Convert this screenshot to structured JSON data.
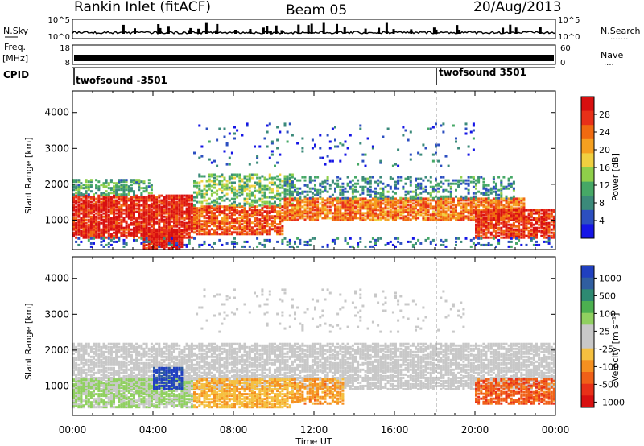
{
  "header": {
    "title": "Rankin Inlet (fitACF)",
    "beam": "Beam 05",
    "date": "20/Aug/2013"
  },
  "noise_panel": {
    "left_label": "N.Sky",
    "right_label": "N.Search",
    "right_dots": "·······",
    "ticks_left": [
      "10^5",
      "10^0"
    ],
    "ticks_right": [
      "10^5",
      "10^0"
    ]
  },
  "freq_panel": {
    "left_label_1": "Freq.",
    "left_label_2": "[MHz]",
    "right_label": "Nave",
    "right_dots": "····",
    "ticks_left": [
      "18",
      "8"
    ],
    "ticks_right": [
      "60",
      "0"
    ]
  },
  "cpid_panel": {
    "label": "CPID",
    "segments": [
      {
        "start_hour": 0,
        "text": "twofsound -3501"
      },
      {
        "start_hour": 18,
        "text": "twofsound 3501"
      }
    ]
  },
  "axis": {
    "xlabel": "Time UT",
    "xticks": [
      "00:00",
      "04:00",
      "08:00",
      "12:00",
      "16:00",
      "20:00",
      "00:00"
    ],
    "ylabel": "Slant Range [km]",
    "yticks": [
      "1000",
      "2000",
      "3000",
      "4000"
    ]
  },
  "colorbars": {
    "power": {
      "label": "Power [dB]",
      "ticks": [
        "4",
        "8",
        "12",
        "16",
        "20",
        "24",
        "28"
      ],
      "colors": [
        "#1515e6",
        "#2c4fc0",
        "#3b8a7a",
        "#46a866",
        "#8fcf4a",
        "#f0d040",
        "#f5a020",
        "#f06a10",
        "#e83018",
        "#d81010"
      ]
    },
    "velocity": {
      "label": "Velocity [m s⁻¹]",
      "ticks": [
        "1000",
        "500",
        "100",
        "25",
        "-25",
        "-100",
        "-500",
        "-1000"
      ],
      "colors": [
        "#2040c0",
        "#305ea0",
        "#2e8a72",
        "#4cb050",
        "#90d060",
        "#c8c8c8",
        "#c8c8c8",
        "#f5c040",
        "#f59020",
        "#f06018",
        "#e83018",
        "#d81010"
      ]
    }
  },
  "chart_data": [
    {
      "type": "heatmap",
      "title": "Power",
      "xlabel": "Time UT",
      "ylabel": "Slant Range [km]",
      "xlim_hours": [
        0,
        24
      ],
      "ylim_km": [
        180,
        4600
      ],
      "colorbar_label": "Power [dB]",
      "colorbar_range": [
        0,
        30
      ],
      "bands": [
        {
          "t0": 0.0,
          "t1": 6.0,
          "r0": 500,
          "r1": 1700,
          "value": 27,
          "density": 0.85
        },
        {
          "t0": 3.5,
          "t1": 5.5,
          "r0": 200,
          "r1": 700,
          "value": 28,
          "density": 0.9
        },
        {
          "t0": 0.0,
          "t1": 4.0,
          "r0": 1700,
          "r1": 2150,
          "value": 10,
          "density": 0.5
        },
        {
          "t0": 6.0,
          "t1": 10.5,
          "r0": 600,
          "r1": 1400,
          "value": 24,
          "density": 0.75
        },
        {
          "t0": 6.0,
          "t1": 11.0,
          "r0": 1400,
          "r1": 2300,
          "value": 12,
          "density": 0.45
        },
        {
          "t0": 10.5,
          "t1": 22.5,
          "r0": 1000,
          "r1": 1600,
          "value": 22,
          "density": 0.8
        },
        {
          "t0": 10.5,
          "t1": 22.0,
          "r0": 1600,
          "r1": 2200,
          "value": 8,
          "density": 0.35
        },
        {
          "t0": 20.0,
          "t1": 24.0,
          "r0": 500,
          "r1": 1300,
          "value": 26,
          "density": 0.8
        },
        {
          "t0": 0.0,
          "t1": 24.0,
          "r0": 250,
          "r1": 500,
          "value": 6,
          "density": 0.2
        },
        {
          "t0": 6.0,
          "t1": 20.0,
          "r0": 2500,
          "r1": 3700,
          "value": 5,
          "density": 0.05
        }
      ]
    },
    {
      "type": "heatmap",
      "title": "Velocity",
      "xlabel": "Time UT",
      "ylabel": "Slant Range [km]",
      "xlim_hours": [
        0,
        24
      ],
      "ylim_km": [
        180,
        4600
      ],
      "colorbar_label": "Velocity [m s⁻¹]",
      "colorbar_range": [
        -1000,
        1000
      ],
      "bands": [
        {
          "t0": 0.0,
          "t1": 24.0,
          "r0": 900,
          "r1": 2200,
          "value": 0,
          "density": 0.7
        },
        {
          "t0": 0.0,
          "t1": 6.0,
          "r0": 400,
          "r1": 1200,
          "value": 200,
          "density": 0.8
        },
        {
          "t0": 4.0,
          "t1": 5.5,
          "r0": 900,
          "r1": 1500,
          "value": 900,
          "density": 0.7
        },
        {
          "t0": 6.0,
          "t1": 11.0,
          "r0": 400,
          "r1": 1200,
          "value": -300,
          "density": 0.7
        },
        {
          "t0": 11.0,
          "t1": 13.5,
          "r0": 500,
          "r1": 1200,
          "value": -400,
          "density": 0.6
        },
        {
          "t0": 20.0,
          "t1": 24.0,
          "r0": 500,
          "r1": 1200,
          "value": -600,
          "density": 0.7
        },
        {
          "t0": 6.0,
          "t1": 20.0,
          "r0": 2500,
          "r1": 3700,
          "value": 0,
          "density": 0.05
        }
      ]
    }
  ]
}
